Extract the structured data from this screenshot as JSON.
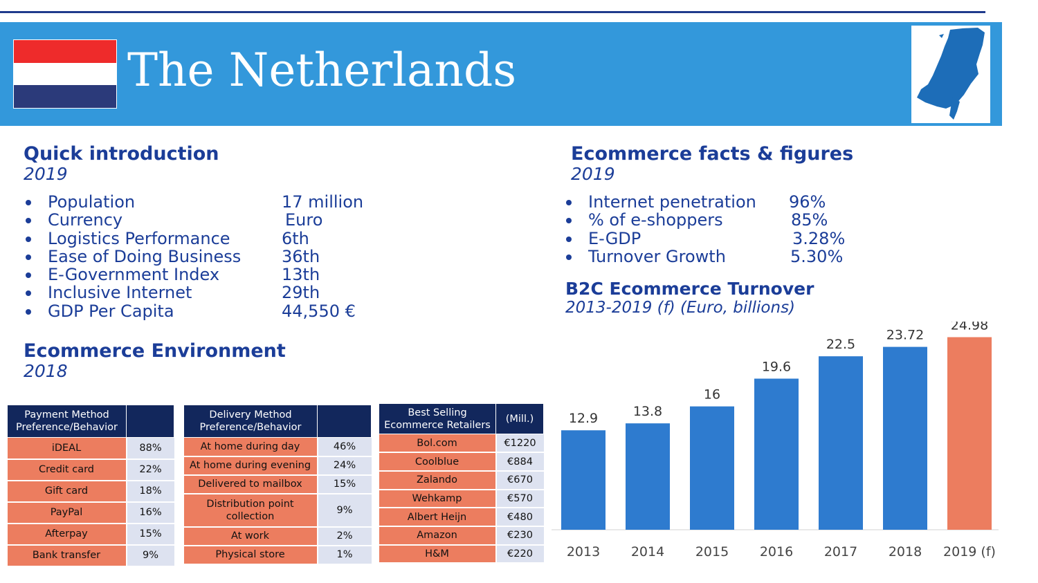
{
  "header": {
    "title": "The Netherlands"
  },
  "quick_intro": {
    "title": "Quick introduction",
    "year": "2019",
    "items": [
      {
        "label": "Population",
        "value": "17 million"
      },
      {
        "label": "Currency",
        "value": "Euro"
      },
      {
        "label": "Logistics Performance",
        "value": "6th"
      },
      {
        "label": "Ease of Doing Business",
        "value": "36th"
      },
      {
        "label": "E-Government Index",
        "value": "13th"
      },
      {
        "label": "Inclusive Internet",
        "value": "29th"
      },
      {
        "label": "GDP Per Capita",
        "value": "44,550 €"
      }
    ]
  },
  "ecommerce_facts": {
    "title": "Ecommerce facts & figures",
    "year": "2019",
    "items": [
      {
        "label": "Internet penetration",
        "value": "96%"
      },
      {
        "label": "% of e-shoppers",
        "value": "85%"
      },
      {
        "label": "E-GDP",
        "value": "3.28%"
      },
      {
        "label": "Turnover Growth",
        "value": "5.30%"
      }
    ]
  },
  "turnover": {
    "title": "B2C Ecommerce Turnover",
    "subtitle": "2013-2019 (f) (Euro, billions)"
  },
  "environment": {
    "title": "Ecommerce Environment",
    "year": "2018"
  },
  "tables": {
    "payment": {
      "header": "Payment Method Preference/Behavior",
      "header2": "",
      "rows": [
        {
          "label": "iDEAL",
          "value": "88%"
        },
        {
          "label": "Credit card",
          "value": "22%"
        },
        {
          "label": "Gift card",
          "value": "18%"
        },
        {
          "label": "PayPal",
          "value": "16%"
        },
        {
          "label": "Afterpay",
          "value": "15%"
        },
        {
          "label": "Bank transfer",
          "value": "9%"
        }
      ]
    },
    "delivery": {
      "header": "Delivery Method Preference/Behavior",
      "header2": "",
      "rows": [
        {
          "label": "At home during day",
          "value": "46%"
        },
        {
          "label": "At home during evening",
          "value": "24%"
        },
        {
          "label": "Delivered to mailbox",
          "value": "15%"
        },
        {
          "label": "Distribution point collection",
          "value": "9%"
        },
        {
          "label": "At work",
          "value": "2%"
        },
        {
          "label": "Physical store",
          "value": "1%"
        }
      ]
    },
    "retailers": {
      "header": "Best Selling Ecommerce Retailers",
      "header2": "(Mill.)",
      "rows": [
        {
          "label": "Bol.com",
          "value": "€1220"
        },
        {
          "label": "Coolblue",
          "value": "€884"
        },
        {
          "label": "Zalando",
          "value": "€670"
        },
        {
          "label": "Wehkamp",
          "value": "€570"
        },
        {
          "label": "Albert Heijn",
          "value": "€480"
        },
        {
          "label": "Amazon",
          "value": "€230"
        },
        {
          "label": "H&M",
          "value": "€220"
        }
      ]
    }
  },
  "colors": {
    "banner": "#3398db",
    "navy_text": "#1b3d98",
    "table_header": "#12275c",
    "table_label": "#ec7d5f",
    "table_value": "#dde2f0",
    "bar": "#2e7bcf",
    "bar_forecast": "#ec7d5f"
  },
  "chart_data": {
    "type": "bar",
    "title": "B2C Ecommerce Turnover",
    "subtitle": "2013-2019 (f) (Euro, billions)",
    "categories": [
      "2013",
      "2014",
      "2015",
      "2016",
      "2017",
      "2018",
      "2019 (f)"
    ],
    "values": [
      12.9,
      13.8,
      16,
      19.6,
      22.5,
      23.72,
      24.98
    ],
    "value_labels": [
      "12.9",
      "13.8",
      "16",
      "19.6",
      "22.5",
      "23.72",
      "24.98"
    ],
    "forecast_index": 6,
    "ylim": [
      0,
      27
    ],
    "grid": false
  }
}
